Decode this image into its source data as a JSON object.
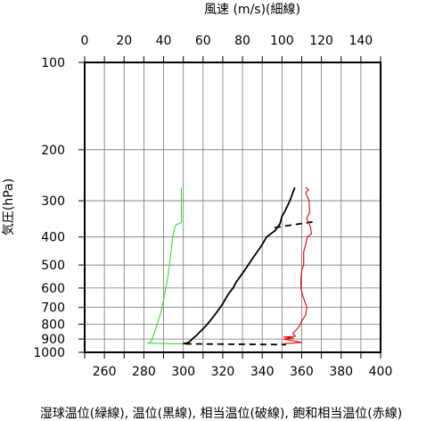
{
  "chart_data": {
    "type": "line",
    "top_axis_label": "風速 (m/s)(細線)",
    "bottom_axis_label": "湿球温位(緑線), 温位(黒線), 相当温位(破線), 飽和相当温位(赤線)",
    "y_axis_label": "気圧(hPa)",
    "y_scale": "log",
    "y_reversed": true,
    "ylim": [
      1000,
      100
    ],
    "y_ticks": [
      100,
      200,
      300,
      400,
      500,
      600,
      700,
      800,
      900,
      1000
    ],
    "x_bottom_range": [
      250,
      400
    ],
    "x_bottom_ticks": [
      260,
      280,
      300,
      320,
      340,
      360,
      380,
      400
    ],
    "x_top_range": [
      0,
      150
    ],
    "x_top_ticks": [
      0,
      20,
      40,
      60,
      80,
      100,
      120,
      140
    ],
    "grid": true,
    "colors": {
      "wet_bulb": "#33dd33",
      "potential": "#000000",
      "equivalent": "#000000",
      "saturated": "#dd0000"
    },
    "series": [
      {
        "key": "wet_bulb",
        "style": "solid",
        "points": [
          [
            299.0,
            270
          ],
          [
            299.0,
            355
          ],
          [
            298.6,
            358
          ],
          [
            296.6,
            362
          ],
          [
            295.8,
            368
          ],
          [
            294.6,
            400
          ],
          [
            293.0,
            500
          ],
          [
            291.5,
            580
          ],
          [
            290.0,
            660
          ],
          [
            288.6,
            730
          ],
          [
            286.0,
            830
          ],
          [
            283.8,
            915
          ],
          [
            282.0,
            930
          ],
          [
            299.8,
            935
          ]
        ]
      },
      {
        "key": "potential",
        "style": "solid",
        "points": [
          [
            356.5,
            270
          ],
          [
            354.0,
            300
          ],
          [
            351.6,
            325
          ],
          [
            350.0,
            340
          ],
          [
            349.0,
            360
          ],
          [
            346.6,
            380
          ],
          [
            342.2,
            400
          ],
          [
            339.5,
            430
          ],
          [
            334.6,
            480
          ],
          [
            331.2,
            520
          ],
          [
            327.0,
            570
          ],
          [
            325.2,
            600
          ],
          [
            322.8,
            630
          ],
          [
            320.0,
            680
          ],
          [
            315.5,
            750
          ],
          [
            311.5,
            810
          ],
          [
            307.0,
            870
          ],
          [
            304.6,
            900
          ],
          [
            302.6,
            925
          ],
          [
            299.8,
            935
          ]
        ]
      },
      {
        "key": "equivalent",
        "style": "dashed",
        "points": [
          [
            365.5,
            355
          ],
          [
            357.0,
            362
          ],
          [
            350.0,
            368
          ],
          [
            346.0,
            372
          ]
        ]
      },
      {
        "key": "equivalent_low",
        "style": "dashed",
        "points": [
          [
            301.0,
            935
          ],
          [
            348.0,
            940
          ],
          [
            352.0,
            940
          ]
        ]
      },
      {
        "key": "saturated",
        "style": "solid",
        "points": [
          [
            362.0,
            270
          ],
          [
            363.5,
            275
          ],
          [
            362.0,
            282
          ],
          [
            363.8,
            300
          ],
          [
            364.0,
            330
          ],
          [
            362.5,
            345
          ],
          [
            364.5,
            370
          ],
          [
            365.0,
            390
          ],
          [
            362.8,
            400
          ],
          [
            362.0,
            425
          ],
          [
            361.0,
            450
          ],
          [
            361.0,
            500
          ],
          [
            360.0,
            520
          ],
          [
            359.6,
            560
          ],
          [
            359.6,
            600
          ],
          [
            360.6,
            640
          ],
          [
            362.6,
            700
          ],
          [
            362.2,
            740
          ],
          [
            360.0,
            780
          ],
          [
            358.5,
            820
          ],
          [
            355.5,
            860
          ],
          [
            356.8,
            880
          ],
          [
            351.0,
            885
          ],
          [
            356.0,
            893
          ],
          [
            351.0,
            900
          ],
          [
            360.0,
            925
          ],
          [
            352.0,
            932
          ],
          [
            349.6,
            938
          ]
        ]
      }
    ]
  }
}
